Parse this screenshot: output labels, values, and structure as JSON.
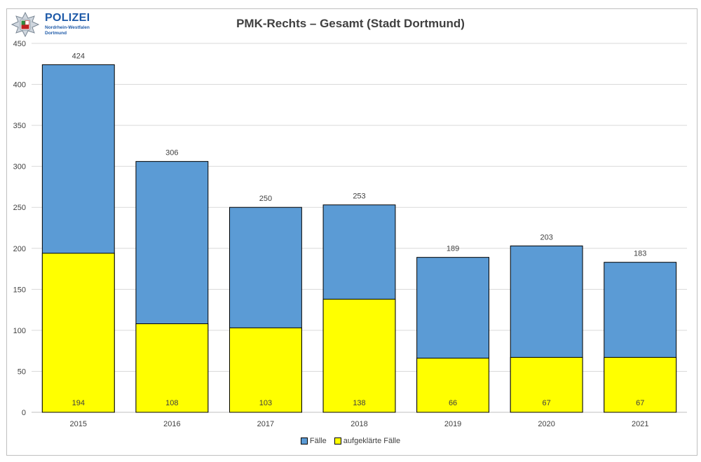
{
  "logo": {
    "word": "POLIZEI",
    "line1": "Nordrhein-Westfalen",
    "line2": "Dortmund"
  },
  "chart_data": {
    "type": "bar",
    "stacked": false,
    "overlapped": true,
    "title": "PMK-Rechts – Gesamt (Stadt Dortmund)",
    "xlabel": "",
    "ylabel": "",
    "categories": [
      "2015",
      "2016",
      "2017",
      "2018",
      "2019",
      "2020",
      "2021"
    ],
    "series": [
      {
        "name": "Fälle",
        "values": [
          424,
          306,
          250,
          253,
          189,
          203,
          183
        ],
        "color": "#5b9bd5"
      },
      {
        "name": "aufgeklärte Fälle",
        "values": [
          194,
          108,
          103,
          138,
          66,
          67,
          67
        ],
        "color": "#ffff00"
      }
    ],
    "ylim": [
      0,
      450
    ],
    "yticks": [
      0,
      50,
      100,
      150,
      200,
      250,
      300,
      350,
      400,
      450
    ],
    "grid": true,
    "legend": "bottom"
  }
}
